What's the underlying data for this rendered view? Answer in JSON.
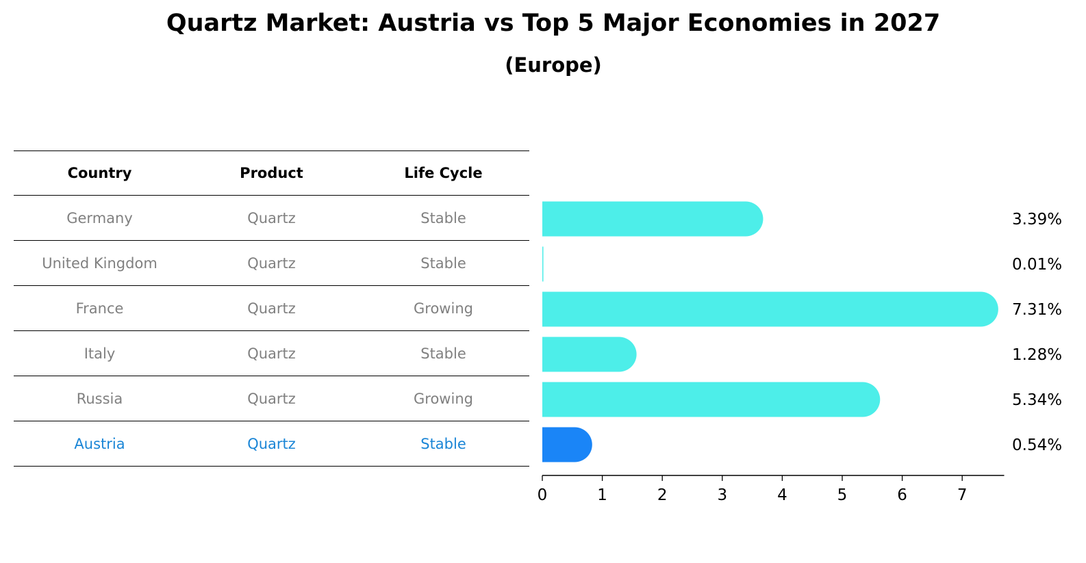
{
  "title": "Quartz Market: Austria vs Top 5 Major Economies in 2027",
  "subtitle": "(Europe)",
  "table": {
    "headers": [
      "Country",
      "Product",
      "Life Cycle"
    ],
    "rows": [
      [
        "Germany",
        "Quartz",
        "Stable"
      ],
      [
        "United Kingdom",
        "Quartz",
        "Stable"
      ],
      [
        "France",
        "Quartz",
        "Growing"
      ],
      [
        "Italy",
        "Quartz",
        "Stable"
      ],
      [
        "Russia",
        "Quartz",
        "Growing"
      ],
      [
        "Austria",
        "Quartz",
        "Stable"
      ]
    ],
    "highlight_row": 5
  },
  "colors": {
    "bar": "#4deee9",
    "highlight_bar": "#1a85f7",
    "highlight_text": "#1a85d6",
    "muted_text": "#808080"
  },
  "chart_data": {
    "type": "bar",
    "orientation": "horizontal",
    "categories": [
      "Germany",
      "United Kingdom",
      "France",
      "Italy",
      "Russia",
      "Austria"
    ],
    "values": [
      3.39,
      0.01,
      7.31,
      1.28,
      5.34,
      0.54
    ],
    "value_labels": [
      "3.39%",
      "0.01%",
      "7.31%",
      "1.28%",
      "5.34%",
      "0.54%"
    ],
    "highlight_index": 5,
    "xlim": [
      0,
      7.7
    ],
    "xticks": [
      0,
      1,
      2,
      3,
      4,
      5,
      6,
      7
    ],
    "grid": false
  }
}
